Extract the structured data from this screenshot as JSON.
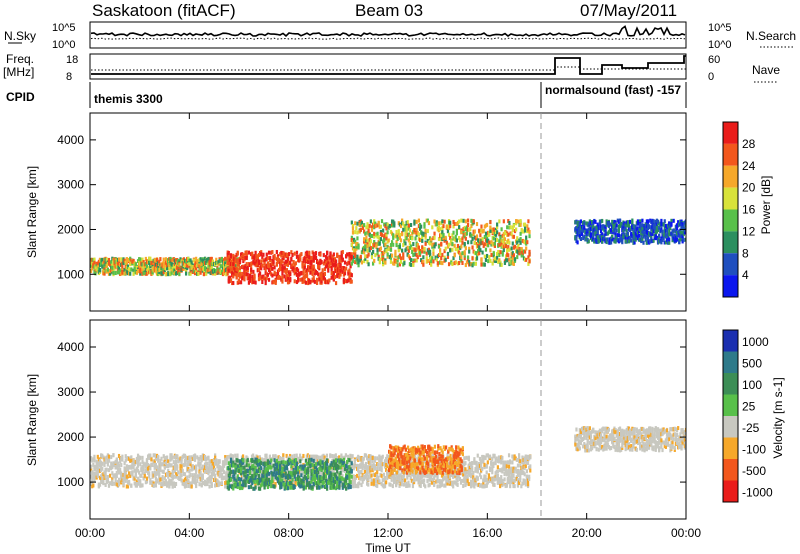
{
  "header": {
    "radar": "Saskatoon (fitACF)",
    "beam": "Beam 03",
    "date": "07/May/2011"
  },
  "summary": {
    "nsky_label": "N.Sky",
    "nsky_ticks": [
      "10^5",
      "10^0"
    ],
    "nsearch_label": "N.Search",
    "nsearch_ticks": [
      "10^5",
      "10^0"
    ],
    "freq_label": "Freq.",
    "freq_unit": "[MHz]",
    "freq_ticks": [
      "18",
      "8"
    ],
    "nave_label": "Nave",
    "nave_ticks": [
      "60",
      "0"
    ],
    "cpid_label": "CPID",
    "cpid_segments": [
      {
        "start": "00:00",
        "end": "18:05",
        "text": "themis 3300"
      },
      {
        "start": "18:05",
        "end": "24:00",
        "text": "normalsound (fast) -157"
      }
    ]
  },
  "chart_data": [
    {
      "type": "heatmap",
      "title": "",
      "xlabel": "Time UT",
      "ylabel": "Slant Range [km]",
      "x_ticks": [
        "00:00",
        "04:00",
        "08:00",
        "12:00",
        "16:00",
        "20:00",
        "00:00"
      ],
      "xlim_hours": [
        0,
        24
      ],
      "ylim_km": [
        180,
        4600
      ],
      "y_ticks": [
        1000,
        2000,
        3000,
        4000
      ],
      "colorbar": {
        "label": "Power [dB]",
        "ticks": [
          "4",
          "8",
          "12",
          "16",
          "20",
          "24",
          "28"
        ],
        "colors": [
          "#0b17ee",
          "#1f4fbf",
          "#2b8f5f",
          "#58c04a",
          "#d8e23a",
          "#f6a82a",
          "#f3571c",
          "#ea1c1a"
        ]
      },
      "scatter_regions": [
        {
          "from_h": 0.0,
          "to_h": 6.0,
          "range_km": [
            1000,
            1350
          ],
          "level": "moderate"
        },
        {
          "from_h": 5.5,
          "to_h": 10.5,
          "range_km": [
            800,
            1500
          ],
          "level": "high"
        },
        {
          "from_h": 10.5,
          "to_h": 17.7,
          "range_km": [
            1200,
            2200
          ],
          "level": "moderate"
        },
        {
          "from_h": 19.5,
          "to_h": 24.0,
          "range_km": [
            1700,
            2200
          ],
          "level": "low"
        }
      ]
    },
    {
      "type": "heatmap",
      "title": "",
      "xlabel": "Time UT",
      "ylabel": "Slant Range [km]",
      "x_ticks": [
        "00:00",
        "04:00",
        "08:00",
        "12:00",
        "16:00",
        "20:00",
        "00:00"
      ],
      "xlim_hours": [
        0,
        24
      ],
      "ylim_km": [
        180,
        4600
      ],
      "y_ticks": [
        1000,
        2000,
        3000,
        4000
      ],
      "colorbar": {
        "label": "Velocity [m s-1]",
        "ticks": [
          "1000",
          "500",
          "100",
          "25",
          "-25",
          "-100",
          "-500",
          "-1000"
        ],
        "colors": [
          "#1b2fb0",
          "#2e7a8a",
          "#3c8e56",
          "#58c04a",
          "#c8c8c0",
          "#f6a82a",
          "#f3571c",
          "#ea1c1a"
        ]
      },
      "scatter_regions": [
        {
          "from_h": 0.0,
          "to_h": 17.7,
          "range_km": [
            900,
            1600
          ],
          "level": "ground"
        },
        {
          "from_h": 5.5,
          "to_h": 10.5,
          "range_km": [
            850,
            1500
          ],
          "level": "positive"
        },
        {
          "from_h": 12.0,
          "to_h": 15.0,
          "range_km": [
            1200,
            1800
          ],
          "level": "negative"
        },
        {
          "from_h": 19.5,
          "to_h": 24.0,
          "range_km": [
            1700,
            2200
          ],
          "level": "ground"
        }
      ]
    }
  ]
}
